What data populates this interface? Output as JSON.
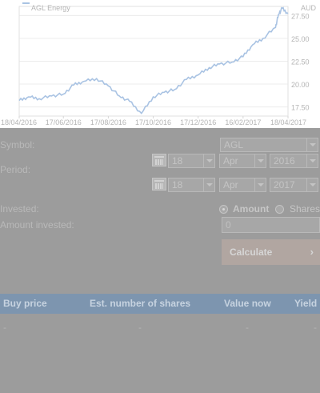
{
  "chart": {
    "legend_label": "AGL Energy",
    "currency_label": "AUD",
    "y_ticks": [
      "27.50",
      "25.00",
      "22.50",
      "20.00",
      "17.50"
    ],
    "x_ticks": [
      "18/04/2016",
      "17/06/2016",
      "17/08/2016",
      "17/10/2016",
      "17/12/2016",
      "16/02/2017",
      "18/04/2017"
    ],
    "line_color": "#a9c3e3"
  },
  "chart_data": {
    "type": "line",
    "title": "",
    "xlabel": "",
    "ylabel": "AUD",
    "ylim": [
      16.5,
      28.5
    ],
    "series": [
      {
        "name": "AGL Energy",
        "x": [
          "18/04/2016",
          "01/05/2016",
          "15/05/2016",
          "01/06/2016",
          "17/06/2016",
          "01/07/2016",
          "15/07/2016",
          "01/08/2016",
          "17/08/2016",
          "01/09/2016",
          "15/09/2016",
          "01/10/2016",
          "17/10/2016",
          "01/11/2016",
          "15/11/2016",
          "01/12/2016",
          "17/12/2016",
          "01/01/2017",
          "15/01/2017",
          "01/02/2017",
          "16/02/2017",
          "01/03/2017",
          "15/03/2017",
          "01/04/2017",
          "05/04/2017",
          "10/04/2017",
          "18/04/2017"
        ],
        "values": [
          18.2,
          18.6,
          18.4,
          18.7,
          18.9,
          19.9,
          20.3,
          20.6,
          19.8,
          18.7,
          18.1,
          16.8,
          18.6,
          19.1,
          19.4,
          20.5,
          21.0,
          21.8,
          22.2,
          22.4,
          23.0,
          24.3,
          25.0,
          26.2,
          27.6,
          28.3,
          27.7
        ]
      }
    ]
  },
  "form": {
    "symbol_label": "Symbol:",
    "symbol_value": "AGL",
    "period_label": "Period:",
    "from_day": "18",
    "from_month": "Apr",
    "from_year": "2016",
    "to_day": "18",
    "to_month": "Apr",
    "to_year": "2017",
    "invested_label": "Invested:",
    "option_amount": "Amount",
    "option_shares": "Shares",
    "amount_invested_label": "Amount invested:",
    "amount_value": "0",
    "calculate_label": "Calculate",
    "calculate_chevron": "›"
  },
  "results": {
    "columns": [
      "Buy price",
      "Est. number of shares",
      "Value now",
      "Yield"
    ],
    "row": [
      "-",
      "-",
      "-",
      "-"
    ]
  }
}
